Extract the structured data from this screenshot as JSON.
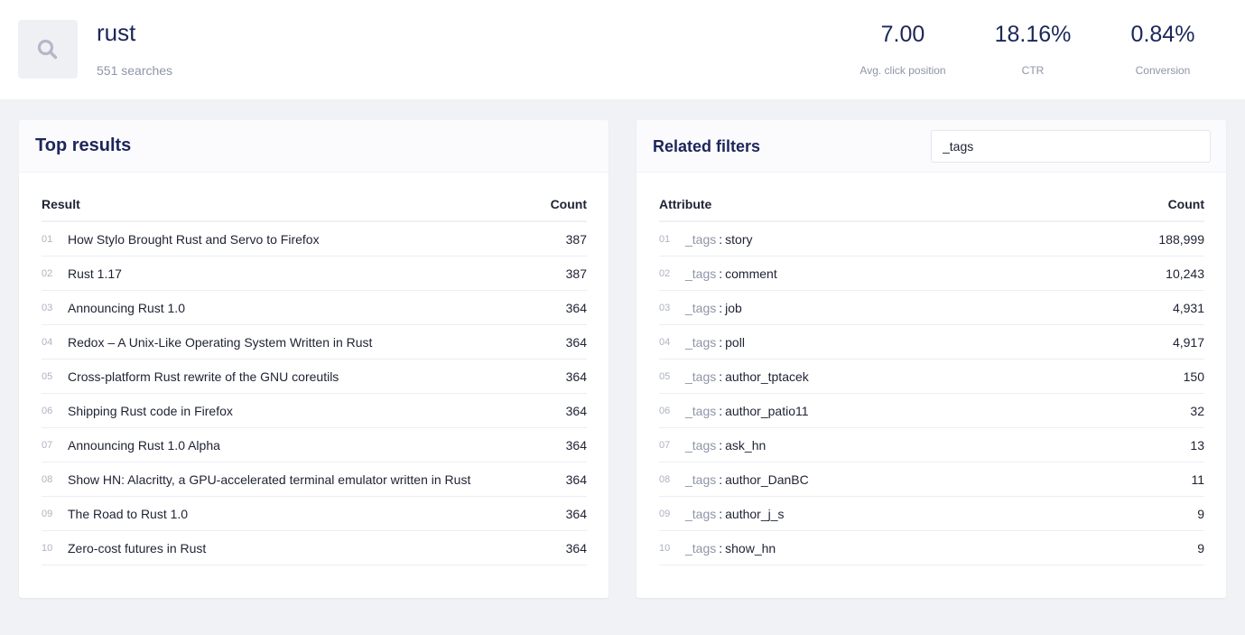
{
  "header": {
    "icon": "search-icon",
    "query": "rust",
    "searches": "551 searches",
    "metrics": [
      {
        "value": "7.00",
        "label": "Avg. click position"
      },
      {
        "value": "18.16%",
        "label": "CTR"
      },
      {
        "value": "0.84%",
        "label": "Conversion"
      }
    ]
  },
  "top_results": {
    "title": "Top results",
    "columns": {
      "result": "Result",
      "count": "Count"
    },
    "rows": [
      {
        "idx": "01",
        "title": "How Stylo Brought Rust and Servo to Firefox",
        "count": "387"
      },
      {
        "idx": "02",
        "title": "Rust 1.17",
        "count": "387"
      },
      {
        "idx": "03",
        "title": "Announcing Rust 1.0",
        "count": "364"
      },
      {
        "idx": "04",
        "title": "Redox – A Unix-Like Operating System Written in Rust",
        "count": "364"
      },
      {
        "idx": "05",
        "title": "Cross-platform Rust rewrite of the GNU coreutils",
        "count": "364"
      },
      {
        "idx": "06",
        "title": "Shipping Rust code in Firefox",
        "count": "364"
      },
      {
        "idx": "07",
        "title": "Announcing Rust 1.0 Alpha",
        "count": "364"
      },
      {
        "idx": "08",
        "title": "Show HN: Alacritty, a GPU-accelerated terminal emulator written in Rust",
        "count": "364"
      },
      {
        "idx": "09",
        "title": "The Road to Rust 1.0",
        "count": "364"
      },
      {
        "idx": "10",
        "title": "Zero-cost futures in Rust",
        "count": "364"
      }
    ]
  },
  "related_filters": {
    "title": "Related filters",
    "filter_value": "_tags",
    "columns": {
      "attribute": "Attribute",
      "count": "Count"
    },
    "rows": [
      {
        "idx": "01",
        "attr": "_tags",
        "sep": ":",
        "value": "story",
        "count": "188,999"
      },
      {
        "idx": "02",
        "attr": "_tags",
        "sep": ":",
        "value": "comment",
        "count": "10,243"
      },
      {
        "idx": "03",
        "attr": "_tags",
        "sep": ":",
        "value": "job",
        "count": "4,931"
      },
      {
        "idx": "04",
        "attr": "_tags",
        "sep": ":",
        "value": "poll",
        "count": "4,917"
      },
      {
        "idx": "05",
        "attr": "_tags",
        "sep": ":",
        "value": "author_tptacek",
        "count": "150"
      },
      {
        "idx": "06",
        "attr": "_tags",
        "sep": ":",
        "value": "author_patio11",
        "count": "32"
      },
      {
        "idx": "07",
        "attr": "_tags",
        "sep": ":",
        "value": "ask_hn",
        "count": "13"
      },
      {
        "idx": "08",
        "attr": "_tags",
        "sep": ":",
        "value": "author_DanBC",
        "count": "11"
      },
      {
        "idx": "09",
        "attr": "_tags",
        "sep": ":",
        "value": "author_j_s",
        "count": "9"
      },
      {
        "idx": "10",
        "attr": "_tags",
        "sep": ":",
        "value": "show_hn",
        "count": "9"
      }
    ]
  },
  "colors": {
    "background": "#f1f2f5",
    "title": "#1c2659",
    "muted": "#8f95a8",
    "index": "#aeb3c2"
  }
}
